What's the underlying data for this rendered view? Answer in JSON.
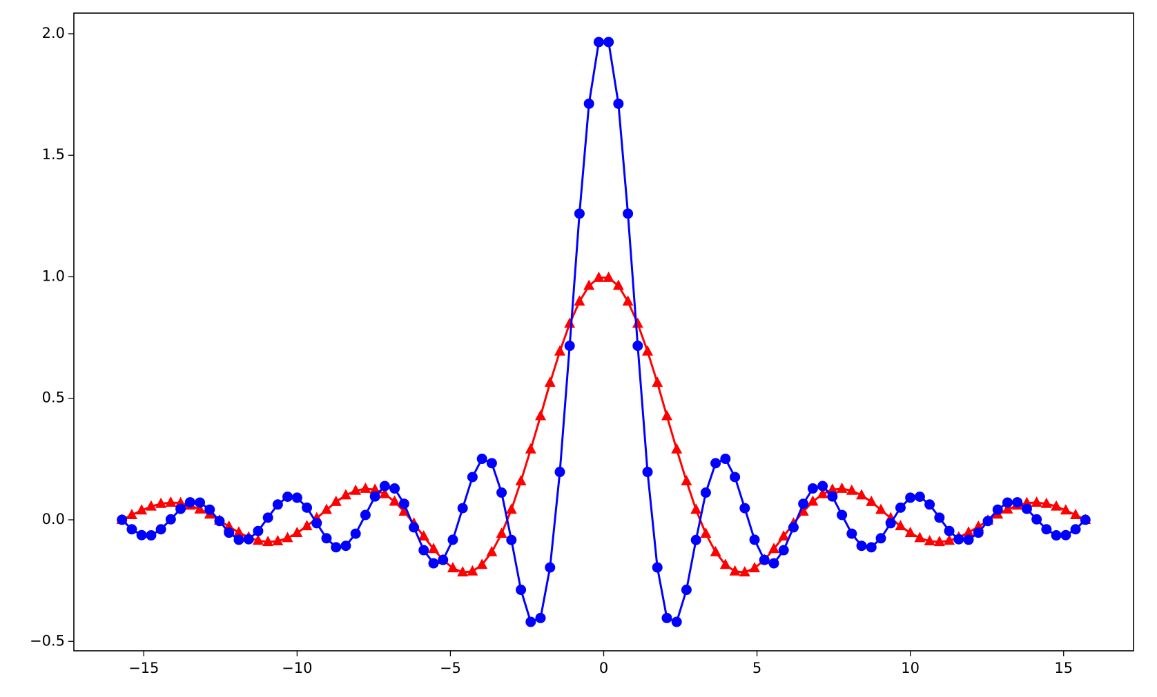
{
  "chart_data": {
    "type": "line",
    "x": [
      -15.71,
      -15.39,
      -15.07,
      -14.76,
      -14.44,
      -14.12,
      -13.8,
      -13.49,
      -13.17,
      -12.85,
      -12.53,
      -12.22,
      -11.9,
      -11.58,
      -11.27,
      -10.95,
      -10.63,
      -10.31,
      -10,
      -9.68,
      -9.36,
      -9.04,
      -8.73,
      -8.41,
      -8.09,
      -7.77,
      -7.46,
      -7.14,
      -6.82,
      -6.51,
      -6.19,
      -5.87,
      -5.55,
      -5.24,
      -4.92,
      -4.6,
      -4.28,
      -3.97,
      -3.65,
      -3.33,
      -3.01,
      -2.7,
      -2.38,
      -2.06,
      -1.75,
      -1.43,
      -1.11,
      -0.79,
      -0.48,
      -0.16,
      0.16,
      0.48,
      0.79,
      1.11,
      1.43,
      1.75,
      2.06,
      2.38,
      2.7,
      3.01,
      3.33,
      3.65,
      3.97,
      4.28,
      4.6,
      4.92,
      5.24,
      5.55,
      5.87,
      6.19,
      6.51,
      6.82,
      7.14,
      7.46,
      7.77,
      8.09,
      8.41,
      8.73,
      9.04,
      9.36,
      9.68,
      10,
      10.31,
      10.63,
      10.95,
      11.27,
      11.58,
      11.9,
      12.22,
      12.53,
      12.85,
      13.17,
      13.49,
      13.8,
      14.12,
      14.44,
      14.76,
      15.07,
      15.39,
      15.71
    ],
    "series": [
      {
        "color": "#ff0000",
        "marker": "triangle",
        "values": [
          0,
          0.02,
          0.039,
          0.055,
          0.066,
          0.071,
          0.069,
          0.059,
          0.043,
          0.022,
          -0.003,
          -0.028,
          -0.052,
          -0.072,
          -0.086,
          -0.091,
          -0.088,
          -0.075,
          -0.054,
          -0.026,
          0.007,
          0.041,
          0.074,
          0.101,
          0.12,
          0.128,
          0.124,
          0.106,
          0.075,
          0.034,
          -0.015,
          -0.068,
          -0.12,
          -0.165,
          -0.199,
          -0.216,
          -0.212,
          -0.185,
          -0.133,
          -0.057,
          0.042,
          0.159,
          0.29,
          0.427,
          0.564,
          0.693,
          0.807,
          0.898,
          0.963,
          0.996,
          0.996,
          0.963,
          0.898,
          0.807,
          0.693,
          0.564,
          0.427,
          0.29,
          0.159,
          0.042,
          -0.057,
          -0.133,
          -0.185,
          -0.212,
          -0.216,
          -0.199,
          -0.165,
          -0.12,
          -0.068,
          -0.015,
          0.034,
          0.075,
          0.106,
          0.124,
          0.128,
          0.12,
          0.101,
          0.074,
          0.041,
          0.007,
          -0.026,
          -0.054,
          -0.075,
          -0.088,
          -0.091,
          -0.086,
          -0.072,
          -0.052,
          -0.028,
          -0.003,
          0.022,
          0.043,
          0.059,
          0.069,
          0.071,
          0.066,
          0.055,
          0.039,
          0.02,
          0
        ]
      },
      {
        "color": "#0000ff",
        "marker": "circle",
        "values": [
          0,
          -0.039,
          -0.063,
          -0.064,
          -0.039,
          0.002,
          0.045,
          0.072,
          0.071,
          0.042,
          -0.005,
          -0.053,
          -0.082,
          -0.08,
          -0.046,
          0.009,
          0.063,
          0.095,
          0.091,
          0.05,
          -0.014,
          -0.076,
          -0.113,
          -0.107,
          -0.057,
          0.02,
          0.096,
          0.139,
          0.129,
          0.066,
          -0.031,
          -0.125,
          -0.179,
          -0.165,
          -0.082,
          0.048,
          0.176,
          0.251,
          0.233,
          0.112,
          -0.083,
          -0.288,
          -0.42,
          -0.404,
          -0.196,
          0.197,
          0.716,
          1.26,
          1.712,
          1.966,
          1.966,
          1.712,
          1.26,
          0.716,
          0.197,
          -0.196,
          -0.404,
          -0.42,
          -0.288,
          -0.083,
          0.112,
          0.233,
          0.251,
          0.176,
          0.048,
          -0.082,
          -0.165,
          -0.179,
          -0.125,
          -0.031,
          0.066,
          0.129,
          0.139,
          0.096,
          0.02,
          -0.057,
          -0.107,
          -0.113,
          -0.076,
          -0.014,
          0.05,
          0.091,
          0.095,
          0.063,
          0.009,
          -0.046,
          -0.08,
          -0.082,
          -0.053,
          -0.005,
          0.042,
          0.071,
          0.072,
          0.045,
          0.002,
          -0.039,
          -0.064,
          -0.063,
          -0.039,
          0
        ]
      }
    ],
    "xlim": [
      -17.28,
      17.28
    ],
    "ylim": [
      -0.539,
      2.085
    ],
    "xticks": [
      {
        "value": -15,
        "label": "−15"
      },
      {
        "value": -10,
        "label": "−10"
      },
      {
        "value": -5,
        "label": "−5"
      },
      0,
      5,
      10,
      15
    ],
    "yticks": [
      {
        "value": -0.5,
        "label": "−0.5"
      },
      {
        "value": 0,
        "label": "0.0"
      },
      0.5,
      {
        "value": 1,
        "label": "1.0"
      },
      1.5,
      {
        "value": 2,
        "label": "2.0"
      }
    ]
  }
}
